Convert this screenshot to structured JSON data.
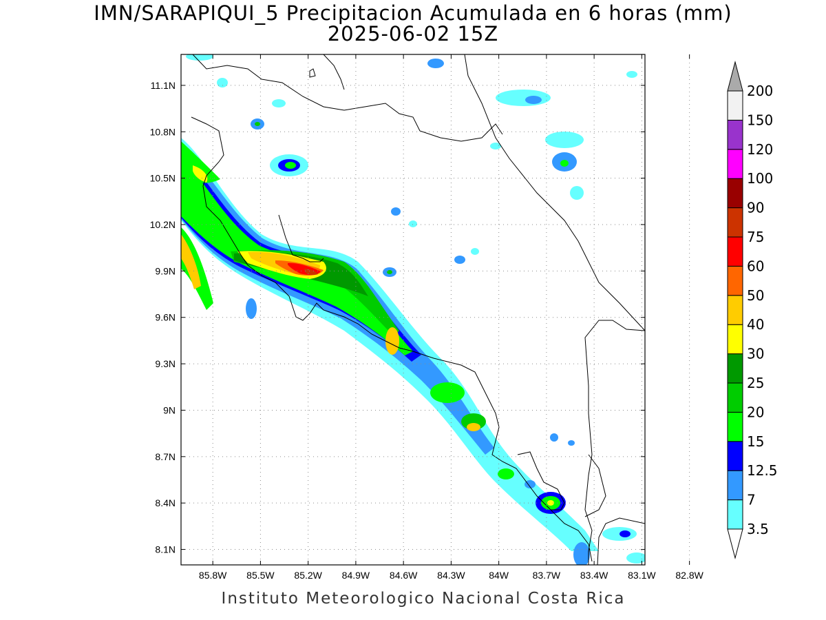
{
  "header": {
    "title": "IMN/SARAPIQUI_5 Precipitacion Acumulada en 6 horas (mm)",
    "subtitle": "2025-06-02 15Z"
  },
  "footer": {
    "credit": "Instituto Meteorologico Nacional Costa Rica"
  },
  "map": {
    "lon_range": [
      -86.0,
      -83.08
    ],
    "lat_range": [
      8.0,
      11.3
    ],
    "lon_ticks": [
      {
        "value": -85.8,
        "label": "85.8W"
      },
      {
        "value": -85.5,
        "label": "85.5W"
      },
      {
        "value": -85.2,
        "label": "85.2W"
      },
      {
        "value": -84.9,
        "label": "84.9W"
      },
      {
        "value": -84.6,
        "label": "84.6W"
      },
      {
        "value": -84.3,
        "label": "84.3W"
      },
      {
        "value": -84.0,
        "label": "84W"
      },
      {
        "value": -83.7,
        "label": "83.7W"
      },
      {
        "value": -83.4,
        "label": "83.4W"
      },
      {
        "value": -83.1,
        "label": "83.1W"
      },
      {
        "value": -82.8,
        "label": "82.8W"
      }
    ],
    "lat_ticks": [
      {
        "value": 11.1,
        "label": "11.1N"
      },
      {
        "value": 10.8,
        "label": "10.8N"
      },
      {
        "value": 10.5,
        "label": "10.5N"
      },
      {
        "value": 10.2,
        "label": "10.2N"
      },
      {
        "value": 9.9,
        "label": "9.9N"
      },
      {
        "value": 9.6,
        "label": "9.6N"
      },
      {
        "value": 9.3,
        "label": "9.3N"
      },
      {
        "value": 9.0,
        "label": "9N"
      },
      {
        "value": 8.7,
        "label": "8.7N"
      },
      {
        "value": 8.4,
        "label": "8.4N"
      },
      {
        "value": 8.1,
        "label": "8.1N"
      }
    ],
    "gridlines": "dotted"
  },
  "colorbar": {
    "levels": [
      {
        "label": "3.5",
        "color": "#66ffff"
      },
      {
        "label": "7",
        "color": "#3399ff"
      },
      {
        "label": "12.5",
        "color": "#0000ff"
      },
      {
        "label": "15",
        "color": "#00ff00"
      },
      {
        "label": "20",
        "color": "#00cc00"
      },
      {
        "label": "25",
        "color": "#009900"
      },
      {
        "label": "30",
        "color": "#ffff00"
      },
      {
        "label": "40",
        "color": "#ffcc00"
      },
      {
        "label": "50",
        "color": "#ff6600"
      },
      {
        "label": "60",
        "color": "#ff0000"
      },
      {
        "label": "75",
        "color": "#cc3300"
      },
      {
        "label": "90",
        "color": "#990000"
      },
      {
        "label": "100",
        "color": "#ff00ff"
      },
      {
        "label": "120",
        "color": "#9933cc"
      },
      {
        "label": "150",
        "color": "#f2f2f2"
      },
      {
        "label": "200",
        "color": "#aaaaaa"
      }
    ],
    "below_color": "#ffffff",
    "above_color": "#aaaaaa"
  }
}
